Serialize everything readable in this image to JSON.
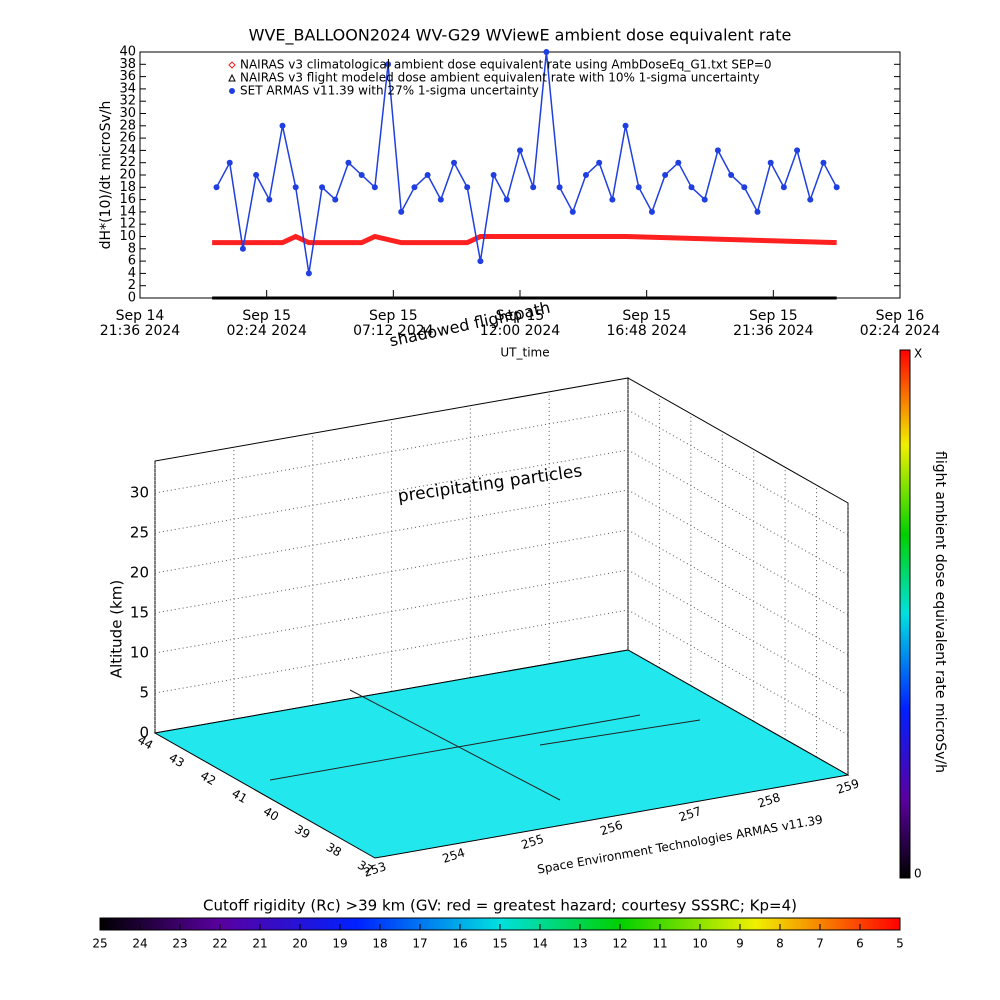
{
  "chart_data": [
    {
      "type": "line",
      "title": "WVE_BALLOON2024 WV-G29 WViewE ambient dose equivalent rate",
      "ylabel": "dH*(10)/dt microSv/h",
      "xlabel": "UT_time",
      "xlim": [
        "2024-09-14T21:36",
        "2024-09-16T02:24"
      ],
      "xticks": [
        {
          "value": "2024-09-14T21:36",
          "label": "Sep 14\n21:36 2024"
        },
        {
          "value": "2024-09-15T02:24",
          "label": "Sep 15\n02:24 2024"
        },
        {
          "value": "2024-09-15T07:12",
          "label": "Sep 15\n07:12 2024"
        },
        {
          "value": "2024-09-15T12:00",
          "label": "Sep 15\n12:00 2024"
        },
        {
          "value": "2024-09-15T16:48",
          "label": "Sep 15\n16:48 2024"
        },
        {
          "value": "2024-09-15T21:36",
          "label": "Sep 15\n21:36 2024"
        },
        {
          "value": "2024-09-16T02:24",
          "label": "Sep 16\n02:24 2024"
        }
      ],
      "ylim": [
        0,
        40
      ],
      "yticks": [
        0,
        2,
        4,
        6,
        8,
        10,
        12,
        14,
        16,
        18,
        20,
        22,
        24,
        26,
        28,
        30,
        32,
        34,
        36,
        38,
        40
      ],
      "series": [
        {
          "name": "SET ARMAS v11.39 with 27% 1-sigma uncertainty",
          "color": "#1f3fe0",
          "x": [
            "2024-09-15T00:30",
            "2024-09-15T01:00",
            "2024-09-15T01:30",
            "2024-09-15T02:00",
            "2024-09-15T02:30",
            "2024-09-15T03:00",
            "2024-09-15T03:30",
            "2024-09-15T04:00",
            "2024-09-15T04:30",
            "2024-09-15T05:00",
            "2024-09-15T05:30",
            "2024-09-15T06:00",
            "2024-09-15T06:30",
            "2024-09-15T07:00",
            "2024-09-15T07:30",
            "2024-09-15T08:00",
            "2024-09-15T08:30",
            "2024-09-15T09:00",
            "2024-09-15T09:30",
            "2024-09-15T10:00",
            "2024-09-15T10:30",
            "2024-09-15T11:00",
            "2024-09-15T11:30",
            "2024-09-15T12:00",
            "2024-09-15T12:30",
            "2024-09-15T13:00",
            "2024-09-15T13:30",
            "2024-09-15T14:00",
            "2024-09-15T14:30",
            "2024-09-15T15:00",
            "2024-09-15T15:30",
            "2024-09-15T16:00",
            "2024-09-15T16:30",
            "2024-09-15T17:00",
            "2024-09-15T17:30",
            "2024-09-15T18:00",
            "2024-09-15T18:30",
            "2024-09-15T19:00",
            "2024-09-15T19:30",
            "2024-09-15T20:00",
            "2024-09-15T20:30",
            "2024-09-15T21:00",
            "2024-09-15T21:30",
            "2024-09-15T22:00",
            "2024-09-15T22:30",
            "2024-09-15T23:00",
            "2024-09-15T23:30",
            "2024-09-16T00:00"
          ],
          "values": [
            18,
            22,
            8,
            20,
            16,
            28,
            18,
            4,
            18,
            16,
            22,
            20,
            18,
            38,
            14,
            18,
            20,
            16,
            22,
            18,
            6,
            20,
            16,
            24,
            18,
            40,
            18,
            14,
            20,
            22,
            16,
            28,
            18,
            14,
            20,
            22,
            18,
            16,
            24,
            20,
            18,
            14,
            22,
            18,
            24,
            16,
            22,
            18
          ]
        },
        {
          "name": "NAIRAS v3 climatological ambient dose equivalent rate using AmbDoseEq_G1.txt SEP=0",
          "color": "#ff2020",
          "x": [
            "2024-09-15T00:20",
            "2024-09-15T03:00",
            "2024-09-15T03:30",
            "2024-09-15T04:00",
            "2024-09-15T06:00",
            "2024-09-15T06:30",
            "2024-09-15T07:30",
            "2024-09-15T10:00",
            "2024-09-15T10:30",
            "2024-09-15T16:00",
            "2024-09-16T00:00"
          ],
          "values": [
            9,
            9,
            10,
            9,
            9,
            10,
            9,
            9,
            10,
            10,
            9
          ]
        },
        {
          "name": "NAIRAS v3 flight modeled dose ambient equivalent rate with 10% 1-sigma uncertainty",
          "color": "#000000",
          "x": [
            "2024-09-15T00:20",
            "2024-09-16T00:00"
          ],
          "values": [
            0,
            0
          ]
        }
      ]
    },
    {
      "type": "flight3d",
      "annotations": [
        "shadowed flightpath",
        "precipitating particles"
      ],
      "zlabel": "Altitude (km)",
      "credit": "Space Environment Technologies ARMAS v11.39",
      "lat_lim": [
        37,
        44
      ],
      "lat_ticks": [
        37,
        38,
        39,
        40,
        41,
        42,
        43,
        44
      ],
      "lon_lim": [
        253,
        259
      ],
      "lon_ticks": [
        253,
        254,
        255,
        256,
        257,
        258,
        259
      ],
      "zlim": [
        0,
        34
      ],
      "zticks": [
        0,
        5,
        10,
        15,
        20,
        25,
        30
      ],
      "colorbar": {
        "label": "flight ambient dose equivalent rate microSv/h",
        "top_label": "X",
        "bottom_label": "0"
      },
      "rigidity_bar": {
        "label": "Cutoff rigidity (Rc) >39 km (GV: red = greatest hazard; courtesy SSSRC; Kp=4)",
        "lim": [
          25,
          5
        ],
        "ticks": [
          25,
          24,
          23,
          22,
          21,
          20,
          19,
          18,
          17,
          16,
          15,
          14,
          13,
          12,
          11,
          10,
          9,
          8,
          7,
          6,
          5
        ]
      }
    }
  ]
}
